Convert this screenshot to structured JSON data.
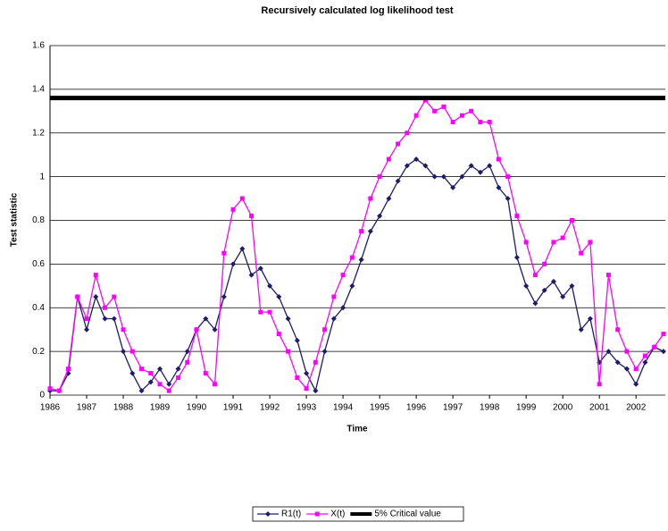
{
  "chart_data": {
    "type": "line",
    "title": "Recursively calculated log likelihood test",
    "x_label": "Time",
    "y_label": "Test statistic",
    "x": [
      1986,
      1986.25,
      1986.5,
      1986.75,
      1987,
      1987.25,
      1987.5,
      1987.75,
      1988,
      1988.25,
      1988.5,
      1988.75,
      1989,
      1989.25,
      1989.5,
      1989.75,
      1990,
      1990.25,
      1990.5,
      1990.75,
      1991,
      1991.25,
      1991.5,
      1991.75,
      1992,
      1992.25,
      1992.5,
      1992.75,
      1993,
      1993.25,
      1993.5,
      1993.75,
      1994,
      1994.25,
      1994.5,
      1994.75,
      1995,
      1995.25,
      1995.5,
      1995.75,
      1996,
      1996.25,
      1996.5,
      1996.75,
      1997,
      1997.25,
      1997.5,
      1997.75,
      1998,
      1998.25,
      1998.5,
      1998.75,
      1999,
      1999.25,
      1999.5,
      1999.75,
      2000,
      2000.25,
      2000.5,
      2000.75,
      2001,
      2001.25,
      2001.5,
      2001.75,
      2002,
      2002.25,
      2002.5,
      2002.75
    ],
    "series": [
      {
        "name": "R1(t)",
        "color": "#1c1c6b",
        "marker": "diamond",
        "values": [
          0.02,
          0.02,
          0.1,
          0.45,
          0.3,
          0.45,
          0.35,
          0.35,
          0.2,
          0.1,
          0.02,
          0.06,
          0.12,
          0.05,
          0.12,
          0.2,
          0.3,
          0.35,
          0.3,
          0.45,
          0.6,
          0.67,
          0.55,
          0.58,
          0.5,
          0.45,
          0.35,
          0.25,
          0.1,
          0.02,
          0.2,
          0.35,
          0.4,
          0.5,
          0.62,
          0.75,
          0.82,
          0.9,
          0.98,
          1.05,
          1.08,
          1.05,
          1,
          1,
          0.95,
          1,
          1.05,
          1.02,
          1.05,
          0.95,
          0.9,
          0.63,
          0.5,
          0.42,
          0.48,
          0.52,
          0.45,
          0.5,
          0.3,
          0.35,
          0.15,
          0.2,
          0.15,
          0.12,
          0.05,
          0.15,
          0.22,
          0.2
        ]
      },
      {
        "name": "X(t)",
        "color": "#ff00ff",
        "marker": "square",
        "values": [
          0.03,
          0.02,
          0.12,
          0.45,
          0.35,
          0.55,
          0.4,
          0.45,
          0.3,
          0.2,
          0.12,
          0.1,
          0.05,
          0.02,
          0.08,
          0.15,
          0.3,
          0.1,
          0.05,
          0.65,
          0.85,
          0.9,
          0.82,
          0.38,
          0.38,
          0.28,
          0.2,
          0.08,
          0.03,
          0.15,
          0.3,
          0.45,
          0.55,
          0.63,
          0.75,
          0.9,
          1,
          1.08,
          1.15,
          1.2,
          1.28,
          1.35,
          1.3,
          1.32,
          1.25,
          1.28,
          1.3,
          1.25,
          1.25,
          1.08,
          1,
          0.82,
          0.7,
          0.55,
          0.6,
          0.7,
          0.72,
          0.8,
          0.65,
          0.7,
          0.05,
          0.55,
          0.3,
          0.2,
          0.12,
          0.18,
          0.22,
          0.28
        ]
      }
    ],
    "critical_value": {
      "name": "5% Critical value",
      "value": 1.36,
      "color": "#000000"
    },
    "xlim": [
      1986,
      2002.8
    ],
    "xticks": [
      1986,
      1987,
      1988,
      1989,
      1990,
      1991,
      1992,
      1993,
      1994,
      1995,
      1996,
      1997,
      1998,
      1999,
      2000,
      2001,
      2002
    ],
    "ylim": [
      0,
      1.6
    ],
    "yticks": [
      0,
      0.2,
      0.4,
      0.6,
      0.8,
      1,
      1.2,
      1.4,
      1.6
    ],
    "grid": true,
    "legend": "bottom"
  }
}
